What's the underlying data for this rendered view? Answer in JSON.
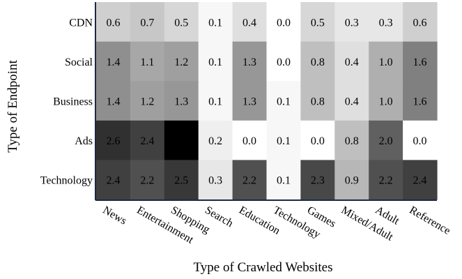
{
  "chart_data": {
    "type": "heatmap",
    "title": "",
    "xlabel": "Type of Crawled Websites",
    "ylabel": "Type of Endpoint",
    "x_categories": [
      "News",
      "Entertainment",
      "Shopping",
      "Search",
      "Education",
      "Technology",
      "Games",
      "Mixed/Adult",
      "Adult",
      "Reference"
    ],
    "y_categories": [
      "CDN",
      "Social",
      "Business",
      "Ads",
      "Technology"
    ],
    "values": [
      [
        0.6,
        0.7,
        0.5,
        0.1,
        0.4,
        0.0,
        0.5,
        0.3,
        0.3,
        0.6
      ],
      [
        1.4,
        1.1,
        1.2,
        0.1,
        1.3,
        0.0,
        0.8,
        0.4,
        1.0,
        1.6
      ],
      [
        1.4,
        1.2,
        1.3,
        0.1,
        1.3,
        0.1,
        0.8,
        0.4,
        1.0,
        1.6
      ],
      [
        2.6,
        2.4,
        3.2,
        0.2,
        0.0,
        0.1,
        0.0,
        0.8,
        2.0,
        0.0
      ],
      [
        2.4,
        2.2,
        2.5,
        0.3,
        2.2,
        0.1,
        2.3,
        0.9,
        2.2,
        2.4
      ]
    ],
    "value_range": [
      0.0,
      3.2
    ],
    "colormap": "white-to-black grayscale",
    "value_format": "one decimal",
    "legend": "none",
    "grid": false
  }
}
